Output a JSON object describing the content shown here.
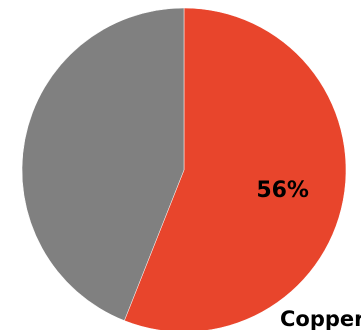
{
  "chart_data": {
    "type": "pie",
    "title": "Copper",
    "values": [
      56,
      44
    ],
    "value_labels": [
      "56%",
      null
    ],
    "colors": [
      "#e8452c",
      "#808080"
    ]
  }
}
